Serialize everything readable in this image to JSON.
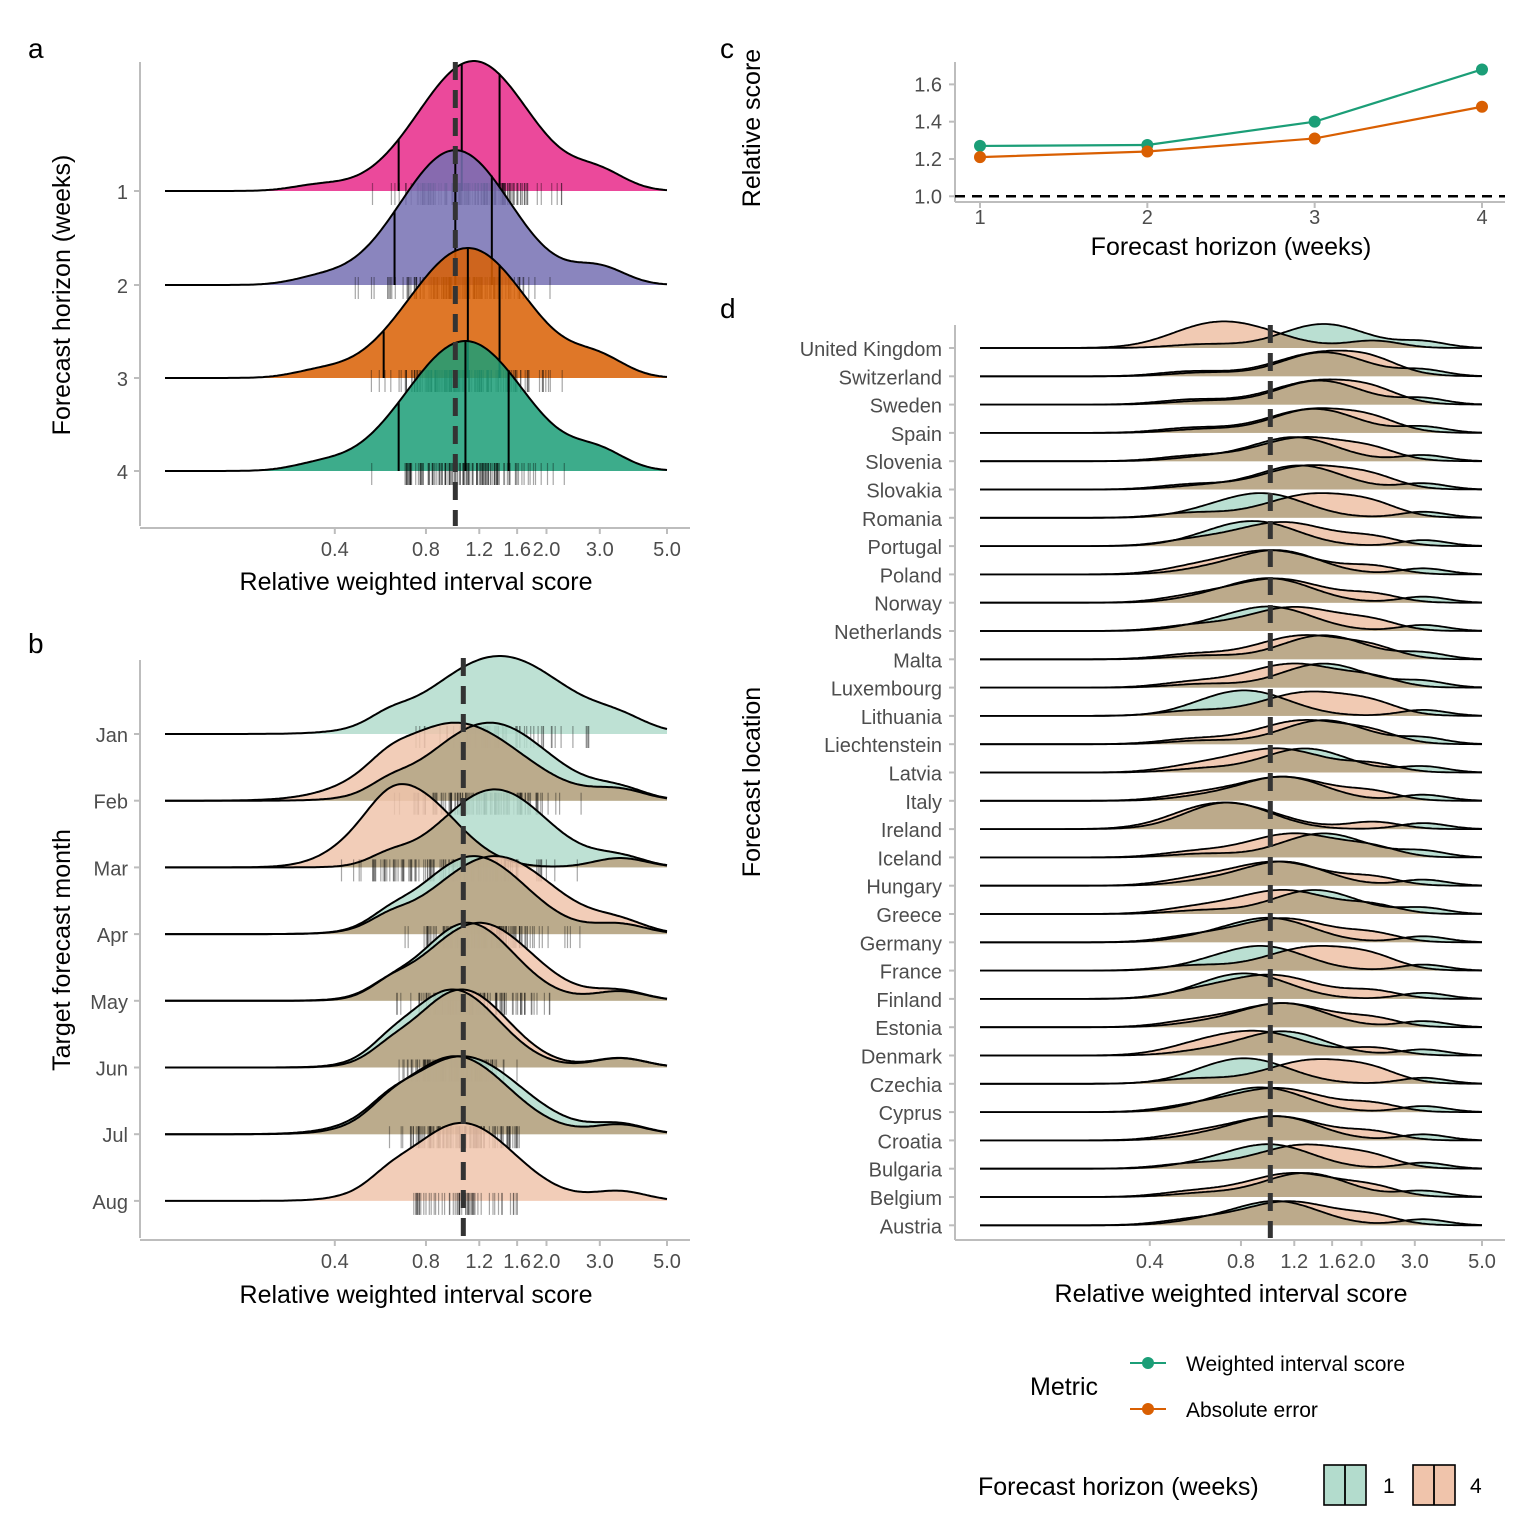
{
  "chart_data": [
    {
      "panel": "a",
      "type": "ridgeline",
      "xlabel": "Relative weighted interval score",
      "ylabel": "Forecast horizon (weeks)",
      "x_scale": "log",
      "x_ticks": [
        "0.4",
        "0.8",
        "1.2",
        "1.6",
        "2.0",
        "3.0",
        "5.0"
      ],
      "reference_line": 1.0,
      "rows": [
        {
          "label": "1",
          "color": "#e7298a",
          "peak_x": 1.15,
          "lower_line": 0.65,
          "median_line": 1.05,
          "upper_line": 1.4,
          "spread": 0.42,
          "rel_height": 1.35
        },
        {
          "label": "2",
          "color": "#7570b3",
          "peak_x": 1.0,
          "lower_line": 0.63,
          "median_line": 1.0,
          "upper_line": 1.32,
          "spread": 0.42,
          "rel_height": 1.4
        },
        {
          "label": "3",
          "color": "#d95f02",
          "peak_x": 1.1,
          "lower_line": 0.58,
          "median_line": 1.1,
          "upper_line": 1.4,
          "spread": 0.45,
          "rel_height": 1.35
        },
        {
          "label": "4",
          "color": "#1b9e77",
          "peak_x": 1.08,
          "lower_line": 0.65,
          "median_line": 1.08,
          "upper_line": 1.5,
          "spread": 0.45,
          "rel_height": 1.35
        }
      ]
    },
    {
      "panel": "b",
      "type": "ridgeline",
      "xlabel": "Relative weighted interval score",
      "ylabel": "Target forecast month",
      "x_scale": "log",
      "x_ticks": [
        "0.4",
        "0.8",
        "1.2",
        "1.6",
        "2.0",
        "3.0",
        "5.0"
      ],
      "reference_line": 1.0,
      "series": [
        {
          "name": "1",
          "color": "#1b9e77"
        },
        {
          "name": "4",
          "color": "#d95f02"
        }
      ],
      "rows": [
        {
          "label": "Jan",
          "h1": {
            "peak_x": 1.4,
            "spread": 0.5
          },
          "h4": null
        },
        {
          "label": "Feb",
          "h1": {
            "peak_x": 1.3,
            "spread": 0.45
          },
          "h4": {
            "peak_x": 1.0,
            "spread": 0.5
          }
        },
        {
          "label": "Mar",
          "h1": {
            "peak_x": 1.35,
            "spread": 0.4
          },
          "h4": {
            "peak_x": 0.7,
            "spread": 0.35
          }
        },
        {
          "label": "Apr",
          "h1": {
            "peak_x": 1.15,
            "spread": 0.4
          },
          "h4": {
            "peak_x": 1.35,
            "spread": 0.45
          }
        },
        {
          "label": "May",
          "h1": {
            "peak_x": 1.1,
            "spread": 0.35
          },
          "h4": {
            "peak_x": 1.2,
            "spread": 0.4
          }
        },
        {
          "label": "Jun",
          "h1": {
            "peak_x": 0.98,
            "spread": 0.35
          },
          "h4": {
            "peak_x": 1.05,
            "spread": 0.35
          }
        },
        {
          "label": "Jul",
          "h1": {
            "peak_x": 1.05,
            "spread": 0.45
          },
          "h4": {
            "peak_x": 1.0,
            "spread": 0.4
          }
        },
        {
          "label": "Aug",
          "h1": null,
          "h4": {
            "peak_x": 1.05,
            "spread": 0.4
          }
        }
      ]
    },
    {
      "panel": "c",
      "type": "line",
      "xlabel": "Forecast horizon (weeks)",
      "ylabel": "Relative score",
      "x": [
        1,
        2,
        3,
        4
      ],
      "ylim": [
        0.98,
        1.72
      ],
      "y_ticks": [
        "1.0",
        "1.2",
        "1.4",
        "1.6"
      ],
      "reference_line": 1.0,
      "series": [
        {
          "name": "Weighted interval score",
          "color": "#1b9e77",
          "values": [
            1.27,
            1.275,
            1.4,
            1.68
          ]
        },
        {
          "name": "Absolute error",
          "color": "#d95f02",
          "values": [
            1.21,
            1.24,
            1.31,
            1.48
          ]
        }
      ]
    },
    {
      "panel": "d",
      "type": "ridgeline",
      "xlabel": "Relative weighted interval score",
      "ylabel": "Forecast location",
      "x_scale": "log",
      "x_ticks": [
        "0.4",
        "0.8",
        "1.2",
        "1.6",
        "2.0",
        "3.0",
        "5.0"
      ],
      "reference_line": 1.0,
      "rows": [
        {
          "label": "United Kingdom",
          "p1": 1.5,
          "p4": 0.75
        },
        {
          "label": "Switzerland",
          "p1": 1.5,
          "p4": 1.5
        },
        {
          "label": "Sweden",
          "p1": 1.45,
          "p4": 1.45
        },
        {
          "label": "Spain",
          "p1": 1.4,
          "p4": 1.4
        },
        {
          "label": "Slovenia",
          "p1": 1.2,
          "p4": 1.3
        },
        {
          "label": "Slovakia",
          "p1": 1.25,
          "p4": 1.35
        },
        {
          "label": "Romania",
          "p1": 0.95,
          "p4": 1.4
        },
        {
          "label": "Portugal",
          "p1": 0.9,
          "p4": 1.1
        },
        {
          "label": "Poland",
          "p1": 1.05,
          "p4": 1.0
        },
        {
          "label": "Norway",
          "p1": 1.0,
          "p4": 1.05
        },
        {
          "label": "Netherlands",
          "p1": 1.0,
          "p4": 1.2
        },
        {
          "label": "Malta",
          "p1": 1.5,
          "p4": 1.3
        },
        {
          "label": "Luxembourg",
          "p1": 1.5,
          "p4": 1.2
        },
        {
          "label": "Lithuania",
          "p1": 0.85,
          "p4": 1.35
        },
        {
          "label": "Liechtenstein",
          "p1": 1.5,
          "p4": 1.3
        },
        {
          "label": "Latvia",
          "p1": 1.3,
          "p4": 1.05
        },
        {
          "label": "Italy",
          "p1": 1.1,
          "p4": 1.1
        },
        {
          "label": "Ireland",
          "p1": 0.75,
          "p4": 0.75
        },
        {
          "label": "Iceland",
          "p1": 1.5,
          "p4": 1.2
        },
        {
          "label": "Hungary",
          "p1": 1.1,
          "p4": 1.05
        },
        {
          "label": "Greece",
          "p1": 1.4,
          "p4": 1.1
        },
        {
          "label": "Germany",
          "p1": 1.0,
          "p4": 1.1
        },
        {
          "label": "France",
          "p1": 0.95,
          "p4": 1.4
        },
        {
          "label": "Finland",
          "p1": 0.85,
          "p4": 1.0
        },
        {
          "label": "Estonia",
          "p1": 1.1,
          "p4": 1.1
        },
        {
          "label": "Denmark",
          "p1": 1.1,
          "p4": 0.9
        },
        {
          "label": "Czechia",
          "p1": 0.85,
          "p4": 1.4
        },
        {
          "label": "Cyprus",
          "p1": 0.95,
          "p4": 1.05
        },
        {
          "label": "Croatia",
          "p1": 1.05,
          "p4": 1.05
        },
        {
          "label": "Bulgaria",
          "p1": 1.0,
          "p4": 1.3
        },
        {
          "label": "Belgium",
          "p1": 1.3,
          "p4": 1.2
        },
        {
          "label": "Austria",
          "p1": 1.05,
          "p4": 1.15
        }
      ]
    }
  ],
  "panel_labels": {
    "a": "a",
    "b": "b",
    "c": "c",
    "d": "d"
  },
  "legend_metric": {
    "title": "Metric",
    "items": [
      {
        "label": "Weighted interval score",
        "color": "#1b9e77"
      },
      {
        "label": "Absolute error",
        "color": "#d95f02"
      }
    ]
  },
  "legend_horizon": {
    "title": "Forecast horizon (weeks)",
    "items": [
      {
        "label": "1",
        "color": "#b3dccd"
      },
      {
        "label": "4",
        "color": "#f0c4ab"
      }
    ]
  }
}
